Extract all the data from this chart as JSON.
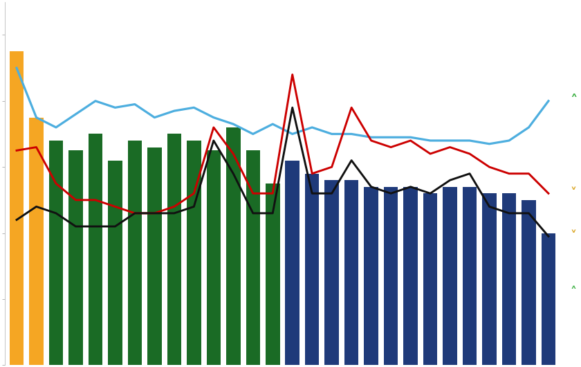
{
  "n_points": 28,
  "bar_heights": [
    9.5,
    7.5,
    6.8,
    6.5,
    7.0,
    6.2,
    6.8,
    6.6,
    7.0,
    6.8,
    6.5,
    7.2,
    6.5,
    5.5,
    6.2,
    5.8,
    5.6,
    5.6,
    5.4,
    5.4,
    5.4,
    5.2,
    5.4,
    5.4,
    5.2,
    5.2,
    5.0,
    4.0
  ],
  "bar_colors_list": [
    "#F5A623",
    "#F5A623",
    "#1A6B25",
    "#1A6B25",
    "#1A6B25",
    "#1A6B25",
    "#1A6B25",
    "#1A6B25",
    "#1A6B25",
    "#1A6B25",
    "#1A6B25",
    "#1A6B25",
    "#1A6B25",
    "#1A6B25",
    "#1F3A7A",
    "#1F3A7A",
    "#1F3A7A",
    "#1F3A7A",
    "#1F3A7A",
    "#1F3A7A",
    "#1F3A7A",
    "#1F3A7A",
    "#1F3A7A",
    "#1F3A7A",
    "#1F3A7A",
    "#1F3A7A",
    "#1F3A7A",
    "#1F3A7A"
  ],
  "blue_line": [
    9.0,
    7.5,
    7.2,
    7.6,
    8.0,
    7.8,
    7.9,
    7.5,
    7.7,
    7.8,
    7.5,
    7.3,
    7.0,
    7.3,
    7.0,
    7.2,
    7.0,
    7.0,
    6.9,
    6.9,
    6.9,
    6.8,
    6.8,
    6.8,
    6.7,
    6.8,
    7.2,
    8.0
  ],
  "red_line": [
    6.5,
    6.6,
    5.5,
    5.0,
    5.0,
    4.8,
    4.6,
    4.6,
    4.8,
    5.2,
    7.2,
    6.4,
    5.2,
    5.2,
    8.8,
    5.8,
    6.0,
    7.8,
    6.8,
    6.6,
    6.8,
    6.4,
    6.6,
    6.4,
    6.0,
    5.8,
    5.8,
    5.2
  ],
  "black_line": [
    4.4,
    4.8,
    4.6,
    4.2,
    4.2,
    4.2,
    4.6,
    4.6,
    4.6,
    4.8,
    6.8,
    5.8,
    4.6,
    4.6,
    7.8,
    5.2,
    5.2,
    6.2,
    5.4,
    5.2,
    5.4,
    5.2,
    5.6,
    5.8,
    4.8,
    4.6,
    4.6,
    3.9
  ],
  "blue_line_color": "#4DAEDF",
  "red_line_color": "#CC0000",
  "black_line_color": "#111111",
  "ylim": [
    0,
    11.0
  ],
  "xlim": [
    -0.6,
    28.5
  ],
  "bar_width": 0.72
}
